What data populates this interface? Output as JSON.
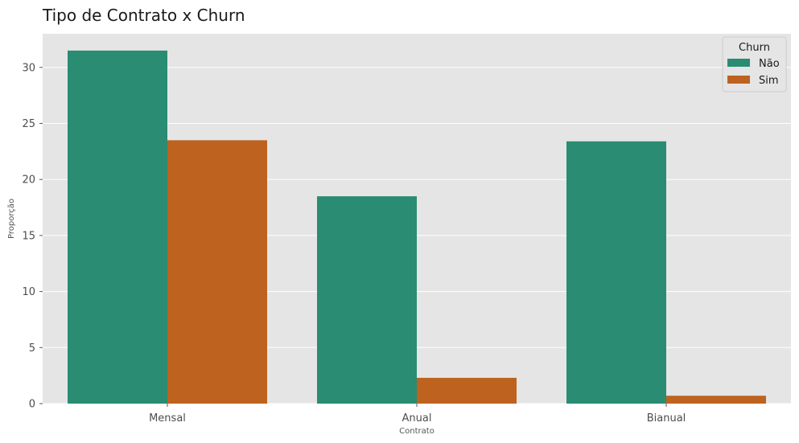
{
  "chart_data": {
    "type": "bar",
    "title": "Tipo de Contrato x Churn",
    "xlabel": "Contrato",
    "ylabel": "Proporção",
    "categories": [
      "Mensal",
      "Anual",
      "Bianual"
    ],
    "series": [
      {
        "name": "Não",
        "values": [
          31.5,
          18.5,
          23.4
        ],
        "color": "#2a8c72"
      },
      {
        "name": "Sim",
        "values": [
          23.5,
          2.3,
          0.7
        ],
        "color": "#be621f"
      }
    ],
    "ylim": [
      0,
      33
    ],
    "yticks": [
      0,
      5,
      10,
      15,
      20,
      25,
      30
    ],
    "legend": {
      "title": "Churn",
      "placement": "top-right"
    },
    "grid": true,
    "background_color": "#e5e5e5",
    "grid_color": "#ffffff"
  }
}
